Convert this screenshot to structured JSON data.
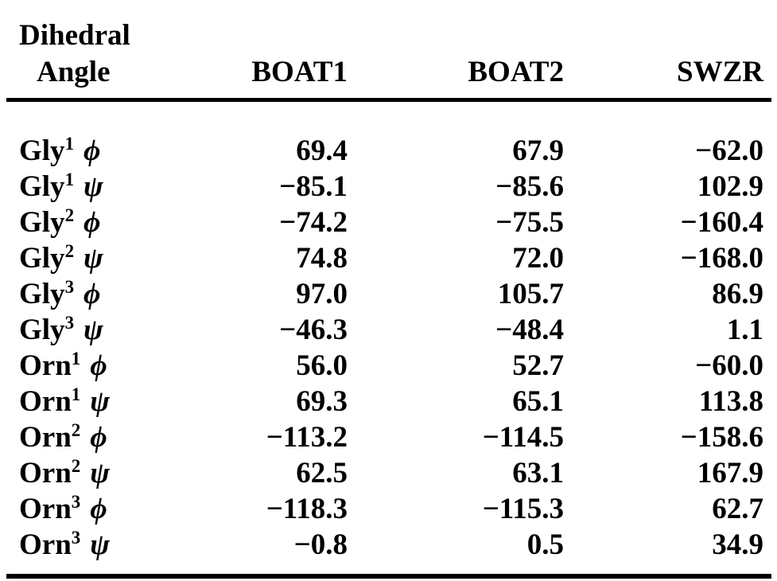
{
  "page": {
    "background_color": "#ffffff",
    "text_color": "#000000"
  },
  "table": {
    "stub_header_line1": "Dihedral",
    "stub_header_line2": "Angle",
    "columns": [
      "BOAT1",
      "BOAT2",
      "SWZR"
    ],
    "rows": [
      {
        "res": "Gly",
        "sup": "1",
        "sym": "ϕ",
        "values": [
          "69.4",
          "67.9",
          "−62.0"
        ]
      },
      {
        "res": "Gly",
        "sup": "1",
        "sym": "ψ",
        "values": [
          "−85.1",
          "−85.6",
          "102.9"
        ]
      },
      {
        "res": "Gly",
        "sup": "2",
        "sym": "ϕ",
        "values": [
          "−74.2",
          "−75.5",
          "−160.4"
        ]
      },
      {
        "res": "Gly",
        "sup": "2",
        "sym": "ψ",
        "values": [
          "74.8",
          "72.0",
          "−168.0"
        ]
      },
      {
        "res": "Gly",
        "sup": "3",
        "sym": "ϕ",
        "values": [
          "97.0",
          "105.7",
          "86.9"
        ]
      },
      {
        "res": "Gly",
        "sup": "3",
        "sym": "ψ",
        "values": [
          "−46.3",
          "−48.4",
          "1.1"
        ]
      },
      {
        "res": "Orn",
        "sup": "1",
        "sym": "ϕ",
        "values": [
          "56.0",
          "52.7",
          "−60.0"
        ]
      },
      {
        "res": "Orn",
        "sup": "1",
        "sym": "ψ",
        "values": [
          "69.3",
          "65.1",
          "113.8"
        ]
      },
      {
        "res": "Orn",
        "sup": "2",
        "sym": "ϕ",
        "values": [
          "−113.2",
          "−114.5",
          "−158.6"
        ]
      },
      {
        "res": "Orn",
        "sup": "2",
        "sym": "ψ",
        "values": [
          "62.5",
          "63.1",
          "167.9"
        ]
      },
      {
        "res": "Orn",
        "sup": "3",
        "sym": "ϕ",
        "values": [
          "−118.3",
          "−115.3",
          "62.7"
        ]
      },
      {
        "res": "Orn",
        "sup": "3",
        "sym": "ψ",
        "values": [
          "−0.8",
          "0.5",
          "34.9"
        ]
      }
    ]
  },
  "chart_data": {
    "type": "table",
    "title": "Dihedral Angle",
    "categories": [
      "Gly1 phi",
      "Gly1 psi",
      "Gly2 phi",
      "Gly2 psi",
      "Gly3 phi",
      "Gly3 psi",
      "Orn1 phi",
      "Orn1 psi",
      "Orn2 phi",
      "Orn2 psi",
      "Orn3 phi",
      "Orn3 psi"
    ],
    "series": [
      {
        "name": "BOAT1",
        "values": [
          69.4,
          -85.1,
          -74.2,
          74.8,
          97.0,
          -46.3,
          56.0,
          69.3,
          -113.2,
          62.5,
          -118.3,
          -0.8
        ]
      },
      {
        "name": "BOAT2",
        "values": [
          67.9,
          -85.6,
          -75.5,
          72.0,
          105.7,
          -48.4,
          52.7,
          65.1,
          -114.5,
          63.1,
          -115.3,
          0.5
        ]
      },
      {
        "name": "SWZR",
        "values": [
          -62.0,
          102.9,
          -160.4,
          -168.0,
          86.9,
          1.1,
          -60.0,
          113.8,
          -158.6,
          167.9,
          62.7,
          34.9
        ]
      }
    ]
  }
}
